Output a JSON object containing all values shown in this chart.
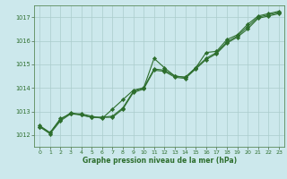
{
  "title": "Graphe pression niveau de la mer (hPa)",
  "bg_color": "#cce8ec",
  "grid_color": "#aacccc",
  "line_color": "#2d6e2d",
  "marker_color": "#2d6e2d",
  "hours": [
    0,
    1,
    2,
    3,
    4,
    5,
    6,
    7,
    8,
    9,
    10,
    11,
    12,
    13,
    14,
    15,
    16,
    17,
    18,
    19,
    20,
    21,
    22,
    23
  ],
  "series1": [
    1012.4,
    1012.1,
    1012.7,
    1012.9,
    1012.9,
    1012.8,
    1012.7,
    1013.1,
    1013.5,
    1013.9,
    1014.0,
    1015.25,
    1014.85,
    1014.5,
    1014.45,
    1014.85,
    1015.5,
    1015.55,
    1016.05,
    1016.25,
    1016.7,
    1017.05,
    1017.15,
    1017.25
  ],
  "series2": [
    1012.35,
    1012.1,
    1012.65,
    1012.95,
    1012.85,
    1012.75,
    1012.75,
    1012.8,
    1013.15,
    1013.85,
    1014.0,
    1014.8,
    1014.75,
    1014.5,
    1014.45,
    1014.85,
    1015.25,
    1015.5,
    1015.95,
    1016.2,
    1016.6,
    1017.0,
    1017.1,
    1017.2
  ],
  "series3": [
    1012.35,
    1012.05,
    1012.6,
    1012.9,
    1012.85,
    1012.75,
    1012.75,
    1012.75,
    1013.1,
    1013.8,
    1013.95,
    1014.75,
    1014.7,
    1014.45,
    1014.4,
    1014.8,
    1015.2,
    1015.45,
    1015.9,
    1016.15,
    1016.5,
    1016.95,
    1017.05,
    1017.15
  ],
  "ylim": [
    1011.5,
    1017.5
  ],
  "yticks": [
    1012,
    1013,
    1014,
    1015,
    1016,
    1017
  ],
  "xlim": [
    -0.5,
    23.5
  ]
}
